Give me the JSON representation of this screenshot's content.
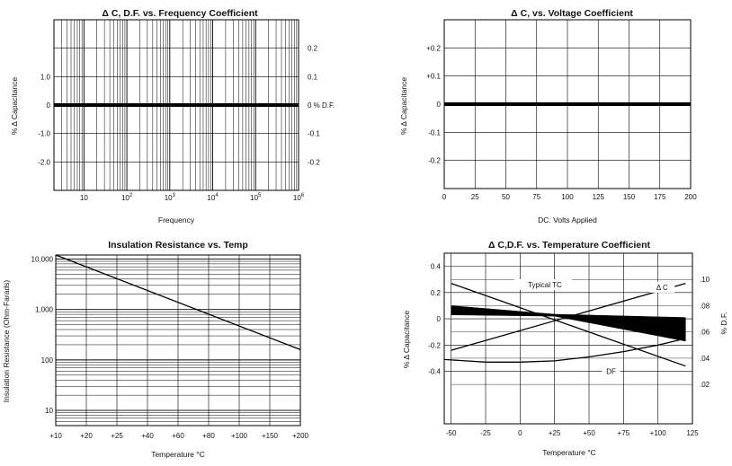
{
  "chart_data": [
    {
      "type": "line",
      "title": "Δ  C, D.F. vs. Frequency Coefficient",
      "xlabel": "Frequency",
      "ylabel": "% Δ Capacitance",
      "xscale": "log",
      "xlim": [
        2,
        1000000
      ],
      "ylim": [
        -3.0,
        3.0
      ],
      "x_ticks": [
        {
          "v": 10,
          "base": "10",
          "exp": ""
        },
        {
          "v": 100,
          "base": "10",
          "exp": "2"
        },
        {
          "v": 1000,
          "base": "10",
          "exp": "3"
        },
        {
          "v": 10000,
          "base": "10",
          "exp": "4"
        },
        {
          "v": 100000,
          "base": "10",
          "exp": "5"
        },
        {
          "v": 1000000,
          "base": "10",
          "exp": "6"
        }
      ],
      "y_ticks_left": [
        {
          "v": 1.0,
          "label": "1.0"
        },
        {
          "v": 0,
          "label": "0"
        },
        {
          "v": -1.0,
          "label": "-1.0"
        },
        {
          "v": -2.0,
          "label": "-2.0"
        }
      ],
      "y_ticks_right": [
        {
          "v": 2.0,
          "label": "0.2"
        },
        {
          "v": 1.0,
          "label": "0.1"
        },
        {
          "v": 0,
          "label": "0 % D.F."
        },
        {
          "v": -1.0,
          "label": "-0.1"
        },
        {
          "v": -2.0,
          "label": "-0.2"
        }
      ],
      "grid": true,
      "series": [
        {
          "x": [
            2,
            1000000
          ],
          "values": [
            0,
            0
          ]
        }
      ]
    },
    {
      "type": "line",
      "title": "Δ  C, vs. Voltage Coefficient",
      "xlabel": "DC. Volts Applied",
      "ylabel": "% Δ Capacitance",
      "xlim": [
        0,
        200
      ],
      "ylim": [
        -0.3,
        0.3
      ],
      "x_ticks": [
        {
          "v": 0,
          "label": "0"
        },
        {
          "v": 25,
          "label": "25"
        },
        {
          "v": 50,
          "label": "50"
        },
        {
          "v": 75,
          "label": "75"
        },
        {
          "v": 100,
          "label": "100"
        },
        {
          "v": 125,
          "label": "125"
        },
        {
          "v": 150,
          "label": "150"
        },
        {
          "v": 175,
          "label": "175"
        },
        {
          "v": 200,
          "label": "200"
        }
      ],
      "y_ticks": [
        {
          "v": 0.2,
          "label": "+0.2"
        },
        {
          "v": 0.1,
          "label": "+0.1"
        },
        {
          "v": 0,
          "label": "0"
        },
        {
          "v": -0.1,
          "label": "-0.1"
        },
        {
          "v": -0.2,
          "label": "-0.2"
        }
      ],
      "grid": true,
      "series": [
        {
          "x": [
            0,
            200
          ],
          "values": [
            0,
            0
          ]
        }
      ]
    },
    {
      "type": "line",
      "title": "Insulation Resistance vs. Temp",
      "xlabel": "Temperature °C",
      "ylabel": "Insulation Resistance (Ohm-Farads)",
      "yscale": "log",
      "ylim": [
        5,
        12000
      ],
      "x_ticks": [
        {
          "label": "+10"
        },
        {
          "label": "+20"
        },
        {
          "label": "+25"
        },
        {
          "label": "+40"
        },
        {
          "label": "+60"
        },
        {
          "label": "+80"
        },
        {
          "label": "+100"
        },
        {
          "label": "+150"
        },
        {
          "label": "+200"
        }
      ],
      "y_ticks": [
        {
          "v": 10000,
          "label": "10,000"
        },
        {
          "v": 1000,
          "label": "1,000"
        },
        {
          "v": 100,
          "label": "100"
        },
        {
          "v": 10,
          "label": "10"
        }
      ],
      "grid": true,
      "series": [
        {
          "x_index": [
            0,
            8
          ],
          "values": [
            12000,
            160
          ]
        }
      ]
    },
    {
      "type": "line",
      "title": "Δ  C,D.F. vs. Temperature Coefficient",
      "xlabel": "Temperature °C",
      "ylabel": "% Δ Capacitance",
      "ylabel_right": "% D.F.",
      "xlim": [
        -55,
        125
      ],
      "ylim": [
        -0.8,
        0.5
      ],
      "ylim_right": [
        -0.01,
        0.12
      ],
      "x_ticks": [
        {
          "v": -50,
          "label": "-50"
        },
        {
          "v": -25,
          "label": "-25"
        },
        {
          "v": 0,
          "label": "0"
        },
        {
          "v": 25,
          "label": "+25"
        },
        {
          "v": 50,
          "label": "+50"
        },
        {
          "v": 75,
          "label": "+75"
        },
        {
          "v": 100,
          "label": "+100"
        },
        {
          "v": 125,
          "label": "125"
        }
      ],
      "y_ticks": [
        {
          "v": 0.4,
          "label": "0.4"
        },
        {
          "v": 0.2,
          "label": "0.2"
        },
        {
          "v": 0,
          "label": "0"
        },
        {
          "v": -0.2,
          "label": "-0.2"
        },
        {
          "v": -0.4,
          "label": "-0.4"
        }
      ],
      "y_ticks_right": [
        {
          "v": 0.1,
          "label": ".10"
        },
        {
          "v": 0.08,
          "label": ".08"
        },
        {
          "v": 0.06,
          "label": ".06"
        },
        {
          "v": 0.04,
          "label": ".04"
        },
        {
          "v": 0.02,
          "label": ".02"
        }
      ],
      "annotations": [
        {
          "text": "Typical TC"
        },
        {
          "text": "Δ C"
        },
        {
          "text": "DF"
        }
      ],
      "grid": true,
      "lines": [
        {
          "x": [
            -50,
            120
          ],
          "values": [
            0.27,
            -0.36
          ]
        },
        {
          "x": [
            -50,
            120
          ],
          "values": [
            -0.24,
            0.27
          ]
        }
      ],
      "band": {
        "x": [
          -50,
          25,
          120
        ],
        "upper": [
          0.1,
          0.035,
          0.01
        ],
        "lower": [
          0.03,
          0.02,
          -0.17
        ]
      },
      "df_curve": {
        "axis": "right",
        "x": [
          -55,
          -25,
          0,
          25,
          50,
          75,
          100,
          120
        ],
        "values": [
          0.039,
          0.037,
          0.037,
          0.038,
          0.041,
          0.045,
          0.05,
          0.055
        ]
      }
    }
  ]
}
